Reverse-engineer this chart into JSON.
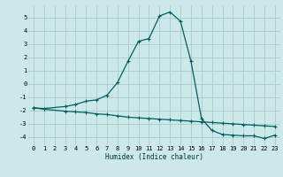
{
  "xlabel": "Humidex (Indice chaleur)",
  "background_color": "#cce8e8",
  "grid_color": "#aacccc",
  "line_color": "#006060",
  "xlim": [
    -0.5,
    23.5
  ],
  "ylim": [
    -4.6,
    5.9
  ],
  "yticks": [
    -4,
    -3,
    -2,
    -1,
    0,
    1,
    2,
    3,
    4,
    5
  ],
  "xticks": [
    0,
    1,
    2,
    3,
    4,
    5,
    6,
    7,
    8,
    9,
    10,
    11,
    12,
    13,
    14,
    15,
    16,
    17,
    18,
    19,
    20,
    21,
    22,
    23
  ],
  "curve1_x": [
    0,
    1,
    3,
    4,
    5,
    6,
    7,
    8,
    9,
    10,
    11,
    12,
    13,
    14,
    15,
    16,
    17,
    18,
    19,
    20,
    21,
    22,
    23
  ],
  "curve1_y": [
    -1.8,
    -1.85,
    -1.7,
    -1.55,
    -1.3,
    -1.2,
    -0.85,
    0.1,
    1.7,
    3.2,
    3.4,
    5.1,
    5.4,
    4.7,
    1.7,
    -2.6,
    -3.5,
    -3.8,
    -3.85,
    -3.9,
    -3.9,
    -4.1,
    -3.85
  ],
  "curve2_x": [
    0,
    1,
    3,
    4,
    5,
    6,
    7,
    8,
    9,
    10,
    11,
    12,
    13,
    14,
    15,
    16,
    17,
    18,
    19,
    20,
    21,
    22,
    23
  ],
  "curve2_y": [
    -1.8,
    -1.9,
    -2.05,
    -2.1,
    -2.15,
    -2.25,
    -2.3,
    -2.4,
    -2.5,
    -2.55,
    -2.6,
    -2.65,
    -2.7,
    -2.75,
    -2.8,
    -2.85,
    -2.9,
    -2.95,
    -3.0,
    -3.05,
    -3.1,
    -3.15,
    -3.2
  ],
  "xlabel_fontsize": 5.5,
  "tick_fontsize": 5,
  "linewidth": 0.9,
  "markersize": 2.5
}
